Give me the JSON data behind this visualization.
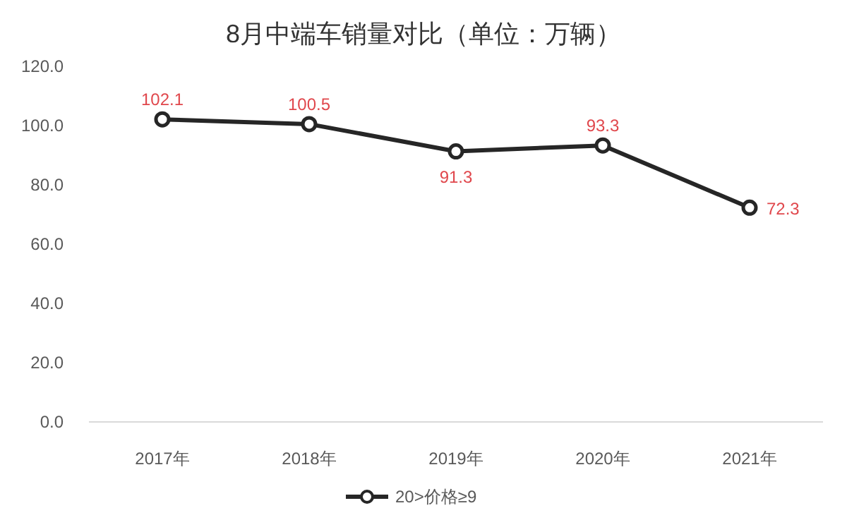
{
  "chart_data": {
    "type": "line",
    "title": "8月中端车销量对比（单位：万辆）",
    "categories": [
      "2017年",
      "2018年",
      "2019年",
      "2020年",
      "2021年"
    ],
    "series": [
      {
        "name": "20>价格≥9",
        "color": "#262626",
        "values": [
          102.1,
          100.5,
          91.3,
          93.3,
          72.3
        ]
      }
    ],
    "ylim": [
      0,
      120
    ],
    "yticks": [
      {
        "value": 0,
        "label": "0.0"
      },
      {
        "value": 20,
        "label": "20.0"
      },
      {
        "value": 40,
        "label": "40.0"
      },
      {
        "value": 60,
        "label": "60.0"
      },
      {
        "value": 80,
        "label": "80.0"
      },
      {
        "value": 100,
        "label": "100.0"
      },
      {
        "value": 120,
        "label": "120.0"
      }
    ],
    "data_labels": true,
    "legend": "bottom",
    "marker": "circle",
    "line_style": "solid",
    "grid": false
  }
}
